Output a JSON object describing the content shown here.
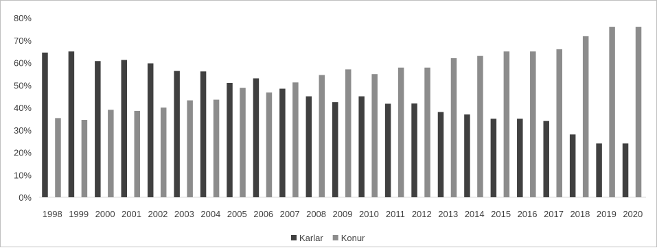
{
  "chart_data": {
    "type": "bar",
    "categories": [
      "1998",
      "1999",
      "2000",
      "2001",
      "2002",
      "2003",
      "2004",
      "2005",
      "2006",
      "2007",
      "2008",
      "2009",
      "2010",
      "2011",
      "2012",
      "2013",
      "2014",
      "2015",
      "2016",
      "2017",
      "2018",
      "2019",
      "2020"
    ],
    "series": [
      {
        "name": "Karlar",
        "color": "#404040",
        "values": [
          64.5,
          65,
          60.7,
          61.2,
          59.7,
          56.3,
          56.1,
          51,
          53,
          48.4,
          45,
          42.4,
          45,
          41.7,
          41.8,
          38,
          36.9,
          35,
          35,
          34,
          28,
          24,
          24
        ]
      },
      {
        "name": "Konur",
        "color": "#8c8c8c",
        "values": [
          35.3,
          34.5,
          39,
          38.5,
          40,
          43.2,
          43.5,
          48.8,
          46.7,
          51.2,
          54.5,
          57,
          54.9,
          57.8,
          57.8,
          62,
          63,
          65,
          65,
          66,
          71.8,
          76,
          76
        ]
      }
    ],
    "y_ticks": [
      "0%",
      "10%",
      "20%",
      "30%",
      "40%",
      "50%",
      "60%",
      "70%",
      "80%"
    ],
    "ylim": [
      0,
      80
    ],
    "grid": false,
    "legend_position": "bottom"
  }
}
